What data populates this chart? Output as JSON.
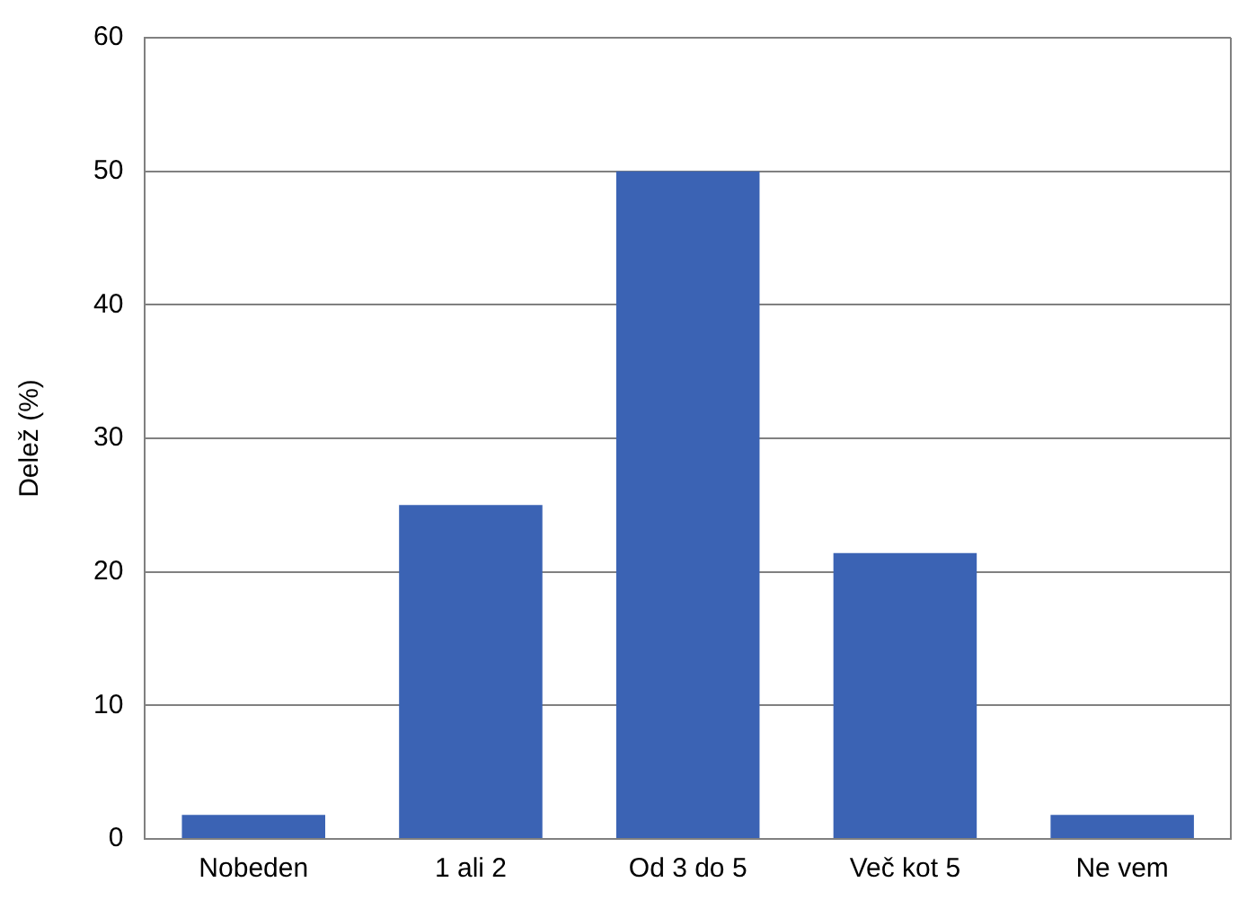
{
  "chart_data": {
    "type": "bar",
    "ylabel": "Delež (%)",
    "categories": [
      "Nobeden",
      "1 ali 2",
      "Od 3 do 5",
      "Več kot 5",
      "Ne vem"
    ],
    "values": [
      1.8,
      25,
      50,
      21.4,
      1.8
    ],
    "color": "#3b63b4",
    "ylim": [
      0,
      60
    ],
    "yticks": [
      0,
      10,
      20,
      30,
      40,
      50,
      60
    ],
    "grid": "y",
    "legend": false
  }
}
